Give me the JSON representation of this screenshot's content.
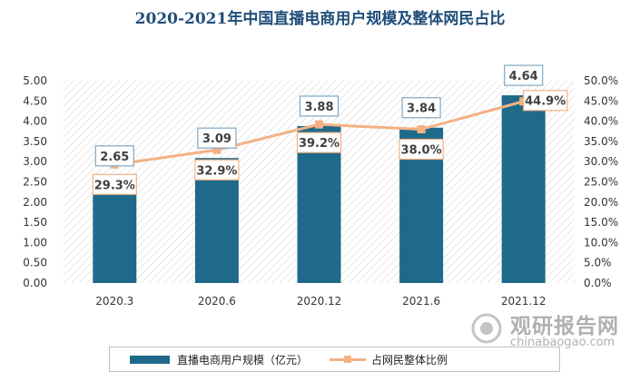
{
  "title": "2020-2021年中国直播电商用户规模及整体网民占比",
  "legend": {
    "bar_label": "直播电商用户规模（亿元）",
    "line_label": "占网民整体比例"
  },
  "watermark": {
    "main": "观研报告网",
    "sub": "chinabaogao.com"
  },
  "chart_data": {
    "type": "bar",
    "title": "2020-2021年中国直播电商用户规模及整体网民占比",
    "categories": [
      "2020.3",
      "2020.6",
      "2020.12",
      "2021.6",
      "2021.12"
    ],
    "series": [
      {
        "name": "直播电商用户规模（亿元）",
        "type": "bar",
        "axis": "left",
        "values": [
          2.65,
          3.09,
          3.88,
          3.84,
          4.64
        ],
        "labels": [
          "2.65",
          "3.09",
          "3.88",
          "3.84",
          "4.64"
        ]
      },
      {
        "name": "占网民整体比例",
        "type": "line",
        "axis": "right",
        "values": [
          29.3,
          32.9,
          39.2,
          38.0,
          44.9
        ],
        "labels": [
          "29.3%",
          "32.9%",
          "39.2%",
          "38.0%",
          "44.9%"
        ]
      }
    ],
    "y_left": {
      "ylim": [
        0,
        5
      ],
      "ticks": [
        "0.00",
        "0.50",
        "1.00",
        "1.50",
        "2.00",
        "2.50",
        "3.00",
        "3.50",
        "4.00",
        "4.50",
        "5.00"
      ]
    },
    "y_right": {
      "ylim": [
        0,
        50
      ],
      "ticks": [
        "0.0%",
        "5.0%",
        "10.0%",
        "15.0%",
        "20.0%",
        "25.0%",
        "30.0%",
        "35.0%",
        "40.0%",
        "45.0%",
        "50.0%"
      ]
    },
    "grid": false,
    "legend_position": "bottom",
    "colors": {
      "bar": "#1f6a8a",
      "line": "#f4b183",
      "title": "#1f4e79"
    }
  }
}
